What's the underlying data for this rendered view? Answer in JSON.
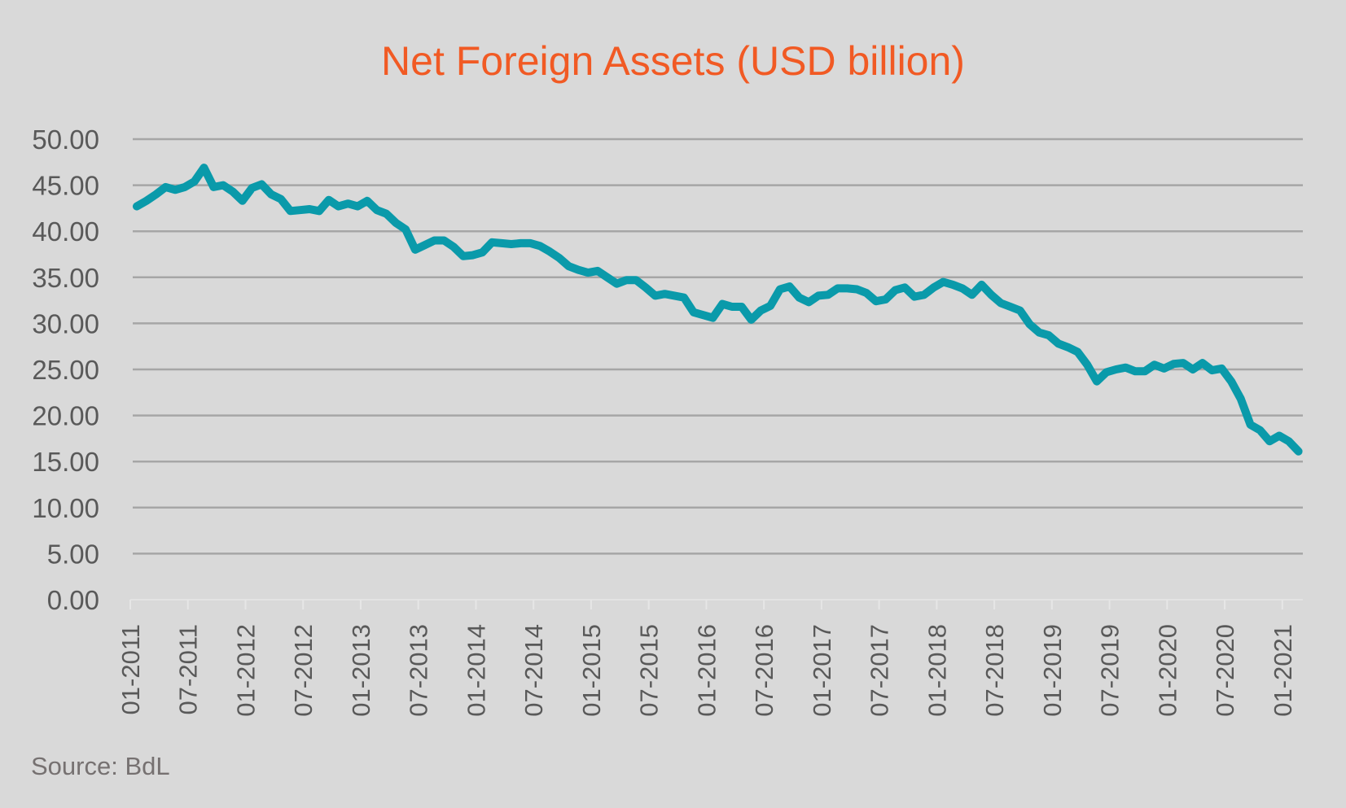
{
  "chart": {
    "title": "Net Foreign Assets (USD billion)",
    "source": "Source: BdL"
  },
  "colors": {
    "background": "#D9D9D9",
    "title": "#F15A24",
    "line": "#0A9AAA",
    "gridline": "#A6A6A6",
    "axis_text": "#595959",
    "source_text": "#767171"
  },
  "chart_data": {
    "type": "line",
    "title": "Net Foreign Assets (USD billion)",
    "xlabel": "",
    "ylabel": "",
    "ylim": [
      0,
      50
    ],
    "y_ticks": [
      "0.00",
      "5.00",
      "10.00",
      "15.00",
      "20.00",
      "25.00",
      "30.00",
      "35.00",
      "40.00",
      "45.00",
      "50.00"
    ],
    "x_tick_labels": [
      "01-2011",
      "07-2011",
      "01-2012",
      "07-2012",
      "01-2013",
      "07-2013",
      "01-2014",
      "07-2014",
      "01-2015",
      "07-2015",
      "01-2016",
      "07-2016",
      "01-2017",
      "07-2017",
      "01-2018",
      "07-2018",
      "01-2019",
      "07-2019",
      "01-2020",
      "07-2020",
      "01-2021"
    ],
    "grid": true,
    "legend": "none",
    "annotation": "Source: BdL",
    "x_start": "01-2011",
    "x_end": "02-2021",
    "x_frequency": "monthly",
    "series": [
      {
        "name": "Net Foreign Assets",
        "values": [
          42.7,
          43.3,
          44.0,
          44.8,
          44.5,
          44.8,
          45.4,
          46.9,
          44.8,
          45.0,
          44.3,
          43.3,
          44.7,
          45.1,
          44.0,
          43.5,
          42.2,
          42.3,
          42.4,
          42.2,
          43.4,
          42.7,
          43.0,
          42.7,
          43.3,
          42.3,
          41.9,
          40.9,
          40.2,
          38.0,
          38.5,
          39.0,
          39.0,
          38.3,
          37.3,
          37.4,
          37.7,
          38.8,
          38.7,
          38.6,
          38.7,
          38.7,
          38.4,
          37.8,
          37.1,
          36.2,
          35.8,
          35.5,
          35.7,
          35.0,
          34.3,
          34.7,
          34.7,
          33.9,
          33.0,
          33.2,
          33.0,
          32.8,
          31.2,
          30.9,
          30.6,
          32.1,
          31.8,
          31.8,
          30.4,
          31.4,
          31.9,
          33.7,
          34.0,
          32.8,
          32.3,
          33.0,
          33.1,
          33.8,
          33.8,
          33.7,
          33.3,
          32.4,
          32.6,
          33.6,
          33.9,
          32.9,
          33.1,
          33.9,
          34.5,
          34.2,
          33.8,
          33.1,
          34.2,
          33.1,
          32.2,
          31.8,
          31.4,
          29.9,
          29.0,
          28.7,
          27.8,
          27.4,
          26.9,
          25.5,
          23.7,
          24.7,
          25.0,
          25.2,
          24.8,
          24.8,
          25.5,
          25.1,
          25.6,
          25.7,
          25.0,
          25.7,
          24.9,
          25.1,
          23.7,
          21.8,
          19.0,
          18.4,
          17.2,
          17.8,
          17.2,
          16.1
        ]
      }
    ]
  }
}
